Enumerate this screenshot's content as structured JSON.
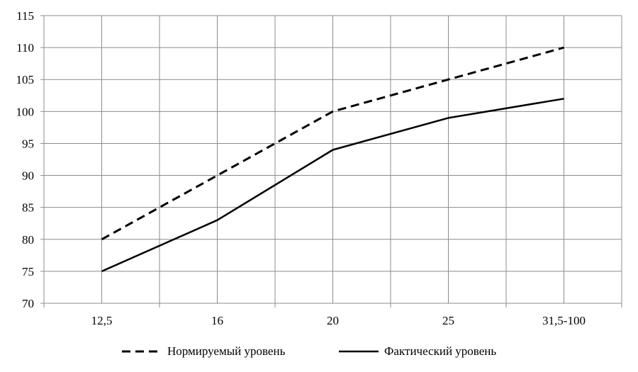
{
  "chart_data": {
    "type": "line",
    "categories": [
      "12,5",
      "16",
      "20",
      "25",
      "31,5-100"
    ],
    "series": [
      {
        "name": "Нормируемый уровень",
        "values": [
          80,
          90,
          100,
          105,
          110
        ],
        "style": "dashed",
        "color": "#000000"
      },
      {
        "name": "Фактический уровень",
        "values": [
          75,
          83,
          94,
          99,
          102
        ],
        "style": "solid",
        "color": "#000000"
      }
    ],
    "yticks": [
      70,
      75,
      80,
      85,
      90,
      95,
      100,
      105,
      110,
      115
    ],
    "ylim": [
      70,
      115
    ],
    "grid": true,
    "legend_position": "bottom",
    "title": "",
    "xlabel": "",
    "ylabel": ""
  }
}
